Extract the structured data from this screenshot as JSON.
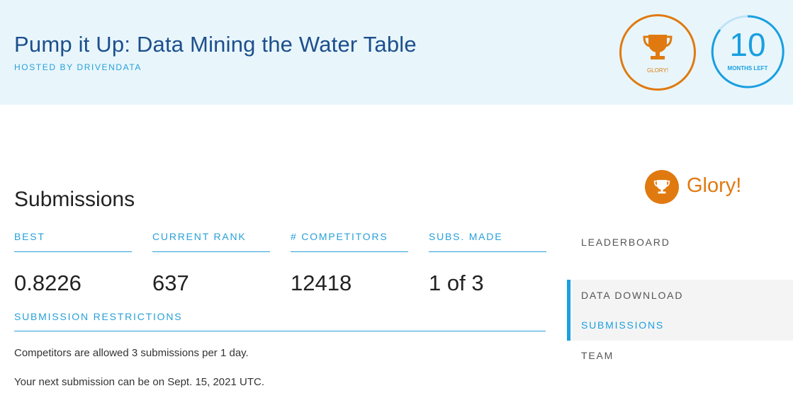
{
  "header": {
    "title": "Pump it Up: Data Mining the Water Table",
    "hosted_by": "HOSTED BY DRIVENDATA",
    "prize_label": "GLORY!",
    "time_number": "10",
    "time_unit": "MONTHS LEFT"
  },
  "colors": {
    "header_bg": "#e8f6fc",
    "accent_blue": "#1a9fe0",
    "prize_orange": "#e07a10",
    "title_blue": "#1d4f8c"
  },
  "icons": {
    "trophy": "trophy-icon"
  },
  "submissions": {
    "title": "Submissions",
    "stats": [
      {
        "label": "BEST",
        "value": "0.8226"
      },
      {
        "label": "CURRENT RANK",
        "value": "637"
      },
      {
        "label": "# COMPETITORS",
        "value": "12418"
      },
      {
        "label": "SUBS. MADE",
        "value": "1 of 3"
      }
    ],
    "restrictions_label": "SUBMISSION RESTRICTIONS",
    "restriction_lines": [
      "Competitors are allowed 3 submissions per 1 day.",
      "Your next submission can be on Sept. 15, 2021 UTC."
    ]
  },
  "sidebar": {
    "prize": "Glory!",
    "nav": [
      {
        "label": "LEADERBOARD",
        "active": false
      },
      {
        "label": "DATA DOWNLOAD",
        "active": false
      },
      {
        "label": "SUBMISSIONS",
        "active": true
      },
      {
        "label": "TEAM",
        "active": false
      }
    ]
  }
}
